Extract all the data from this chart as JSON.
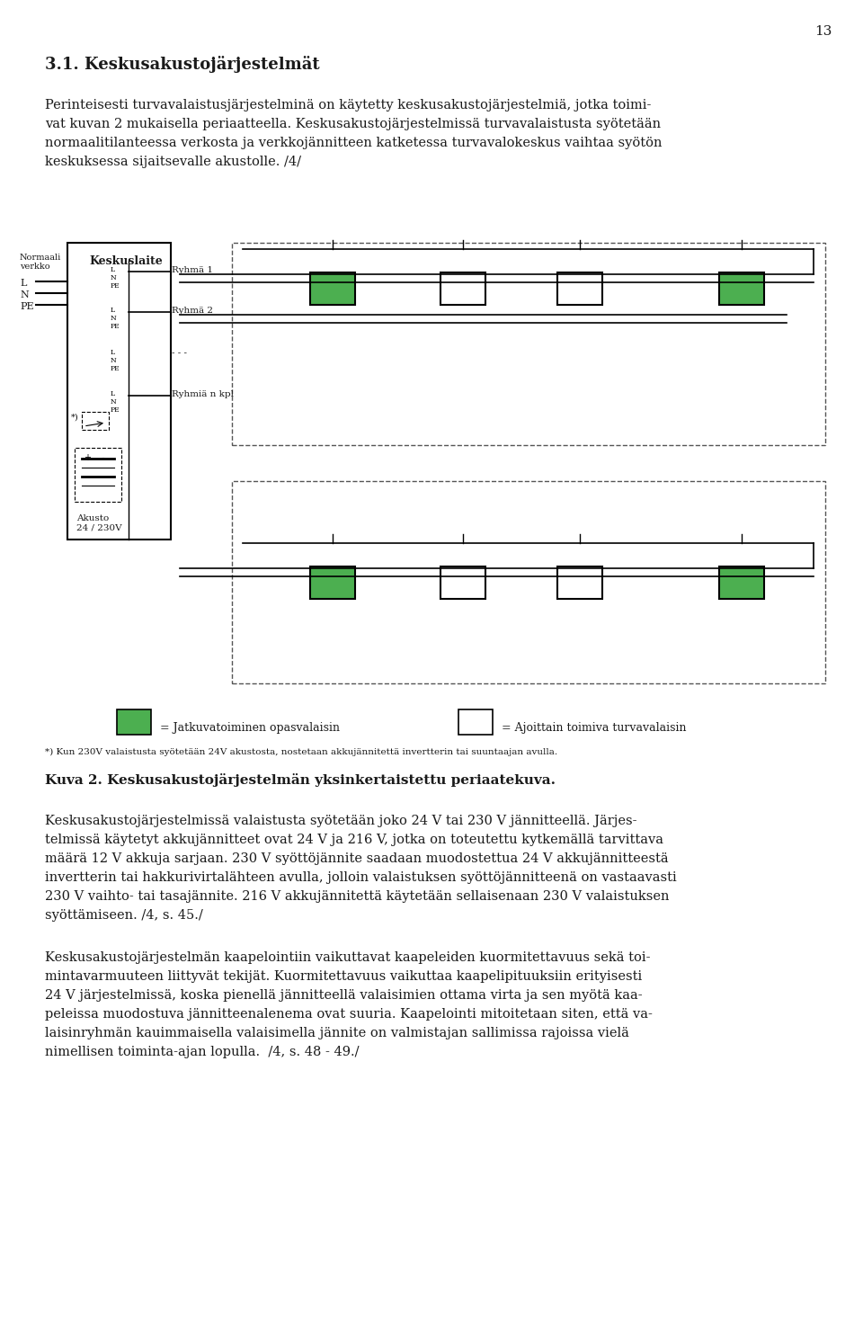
{
  "page_number": "13",
  "bg_color": "#ffffff",
  "text_color": "#1a1a1a",
  "heading1": "3.1. Keskusakustojärjestelmät",
  "caption": "Kuva 2. Keskusakustojärjestelmän yksinkertaistettu periaatekuva.",
  "green_color": "#4caf50",
  "line_color": "#000000",
  "dashed_outline": "#555555",
  "para1_lines": [
    "Perinteisesti turvavalaistusjärjestelminä on käytetty keskusakustojärjestelmiä, jotka toimi-",
    "vat kuvan 2 mukaisella periaatteella. Keskusakustojärjestelmissä turvavalaistusta syötetään",
    "normaalitilanteessa verkosta ja verkkojännitteen katketessa turvavalokeskus vaihtaa syötön",
    "keskuksessa sijaitsevalle akustolle. /4/"
  ],
  "para2_lines": [
    "Keskusakustojärjestelmissä valaistusta syötetään joko 24 V tai 230 V jännitteellä. Järjes-",
    "telmissä käytetyt akkujännitteet ovat 24 V ja 216 V, jotka on toteutettu kytkemällä tarvittava",
    "määrä 12 V akkuja sarjaan. 230 V syöttöjännite saadaan muodostettua 24 V akkujännitteestä",
    "invertterin tai hakkurivirtalähteen avulla, jolloin valaistuksen syöttöjännitteenä on vastaavasti",
    "230 V vaihto- tai tasajännite. 216 V akkujännitettä käytetään sellaisenaan 230 V valaistuksen",
    "syöttämiseen. /4, s. 45./"
  ],
  "para3_lines": [
    "Keskusakustojärjestelmän kaapelointiin vaikuttavat kaapeleiden kuormitettavuus sekä toi-",
    "mintavarmuuteen liittyvät tekijät. Kuormitettavuus vaikuttaa kaapelipituuksiin erityisesti",
    "24 V järjestelmissä, koska pienellä jännitteellä valaisimien ottama virta ja sen myötä kaa-",
    "peleissa muodostuva jännitteenalenema ovat suuria. Kaapelointi mitoitetaan siten, että va-",
    "laisinryhmän kauimmaisella valaisimella jännite on valmistajan sallimissa rajoissa vielä",
    "nimellisen toiminta-ajan lopulla.  /4, s. 48 - 49./"
  ],
  "footnote": "*) Kun 230V valaistusta syötetään 24V akustosta, nostetaan akkujännitettä invertterin tai suuntaajan avulla.",
  "legend_green": "= Jatkuvatoiminen opasvalaisin",
  "legend_white": "= Ajoittain toimiva turvavalaisin"
}
